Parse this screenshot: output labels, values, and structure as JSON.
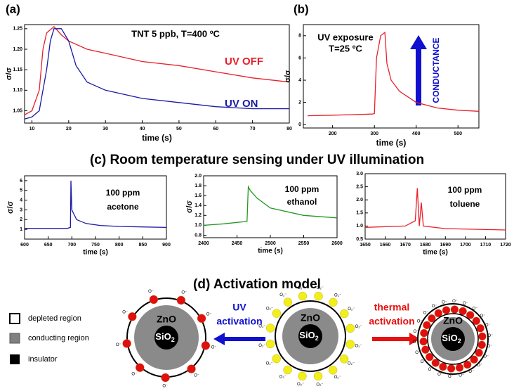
{
  "chart_data": [
    {
      "type": "line",
      "panel": "(a)",
      "x_label": "time (s)",
      "y_label": "σ/σ",
      "y_label_sub": "baseline",
      "annotations": [
        "TNT  5 ppb, T=400 ºC"
      ],
      "xlim": [
        8,
        80
      ],
      "xticks": [
        10,
        20,
        30,
        40,
        50,
        60,
        70,
        80
      ],
      "ylim": [
        1.02,
        1.26
      ],
      "yticks": [
        1.05,
        {
          "value": 1.1,
          "label": "1.10"
        },
        1.15,
        {
          "value": 1.2,
          "label": "1.20"
        },
        1.25
      ],
      "series": [
        {
          "name": "UV OFF",
          "color": "#e8202a",
          "x": [
            8,
            10,
            12,
            13,
            14,
            16,
            18,
            20,
            25,
            30,
            40,
            50,
            60,
            70,
            80
          ],
          "values": [
            1.04,
            1.05,
            1.1,
            1.2,
            1.24,
            1.255,
            1.235,
            1.22,
            1.2,
            1.19,
            1.17,
            1.16,
            1.145,
            1.13,
            1.12
          ]
        },
        {
          "name": "UV ON",
          "color": "#1a1aa6",
          "x": [
            8,
            10,
            12,
            14,
            15,
            16,
            18,
            20,
            22,
            25,
            30,
            40,
            50,
            60,
            70,
            80
          ],
          "values": [
            1.03,
            1.035,
            1.05,
            1.15,
            1.22,
            1.25,
            1.25,
            1.22,
            1.16,
            1.12,
            1.1,
            1.08,
            1.07,
            1.06,
            1.055,
            1.055
          ]
        }
      ]
    },
    {
      "type": "line",
      "panel": "(b)",
      "x_label": "time (s)",
      "y_label": "σ/σ",
      "y_label_sub": "baseline",
      "annotations": [
        "UV exposure",
        "T=25 ºC",
        "CONDUCTANCE"
      ],
      "xlim": [
        130,
        550
      ],
      "xticks": [
        200,
        300,
        400,
        500
      ],
      "ylim": [
        -0.3,
        9
      ],
      "yticks": [
        0,
        2,
        4,
        6,
        8
      ],
      "series": [
        {
          "color": "#e8202a",
          "x": [
            140,
            200,
            250,
            295,
            300,
            305,
            315,
            325,
            330,
            340,
            360,
            400,
            450,
            500,
            550
          ],
          "values": [
            0.8,
            0.85,
            0.9,
            0.95,
            1,
            6,
            8,
            8.3,
            5.5,
            4,
            3,
            2,
            1.5,
            1.3,
            1.2
          ]
        }
      ]
    },
    {
      "type": "line",
      "title": "(c) Room temperature sensing under UV illumination",
      "x_label": "time (s)",
      "y_label": "σ/σ",
      "y_label_sub": "baseline",
      "annotations": [
        "100 ppm",
        "acetone"
      ],
      "xlim": [
        600,
        900
      ],
      "xticks": [
        600,
        650,
        700,
        750,
        800,
        850,
        900
      ],
      "ylim": [
        0,
        6.5
      ],
      "yticks": [
        1,
        2,
        3,
        4,
        5,
        6
      ],
      "series": [
        {
          "color": "#1a1aa6",
          "x": [
            600,
            650,
            690,
            697,
            698,
            700,
            710,
            730,
            760,
            800,
            850,
            900
          ],
          "values": [
            1.1,
            1.1,
            1.1,
            1.2,
            6,
            3,
            2,
            1.6,
            1.4,
            1.3,
            1.25,
            1.2
          ]
        }
      ]
    },
    {
      "type": "line",
      "x_label": "time (s)",
      "y_label": "σ/σ",
      "y_label_sub": "baseline",
      "annotations": [
        "100 ppm",
        "ethanol"
      ],
      "xlim": [
        2400,
        2600
      ],
      "xticks": [
        2400,
        2450,
        2500,
        2550,
        2600
      ],
      "ylim": [
        0.75,
        2.0
      ],
      "yticks": [
        0.8,
        {
          "value": 1,
          "label": "1.0"
        },
        1.2,
        1.4,
        1.6,
        1.8,
        {
          "value": 2,
          "label": "2.0"
        }
      ],
      "series": [
        {
          "color": "#229a22",
          "x": [
            2400,
            2430,
            2465,
            2467,
            2470,
            2480,
            2500,
            2550,
            2600
          ],
          "values": [
            1.0,
            1.03,
            1.08,
            1.78,
            1.7,
            1.55,
            1.35,
            1.2,
            1.15
          ]
        }
      ]
    },
    {
      "type": "line",
      "x_label": "time (s)",
      "annotations": [
        "100 ppm",
        "toluene"
      ],
      "xlim": [
        1650,
        1720
      ],
      "xticks": [
        1650,
        1660,
        1670,
        1680,
        1690,
        1700,
        1710,
        1720
      ],
      "ylim": [
        0.5,
        3.0
      ],
      "yticks": [
        0.5,
        {
          "value": 1,
          "label": "1.0"
        },
        1.5,
        {
          "value": 2,
          "label": "2.0"
        },
        2.5,
        {
          "value": 3,
          "label": "3.0"
        }
      ],
      "series": [
        {
          "color": "#e8202a",
          "x": [
            1650,
            1670,
            1675,
            1676,
            1677,
            1678,
            1679,
            1690,
            1720
          ],
          "values": [
            0.95,
            1.0,
            1.2,
            2.45,
            1.0,
            1.9,
            1.0,
            0.9,
            0.85
          ]
        }
      ]
    }
  ],
  "model": {
    "title": "(d) Activation model",
    "legend": [
      "depleted region",
      "conducting region",
      "insulator"
    ],
    "shell": "ZnO",
    "core": "SiO",
    "core_sub": "2",
    "uv": [
      "UV",
      "activation"
    ],
    "thermal": [
      "thermal",
      "activation"
    ],
    "ion_o": "O⁻",
    "ion_o2": "O₂⁻"
  }
}
